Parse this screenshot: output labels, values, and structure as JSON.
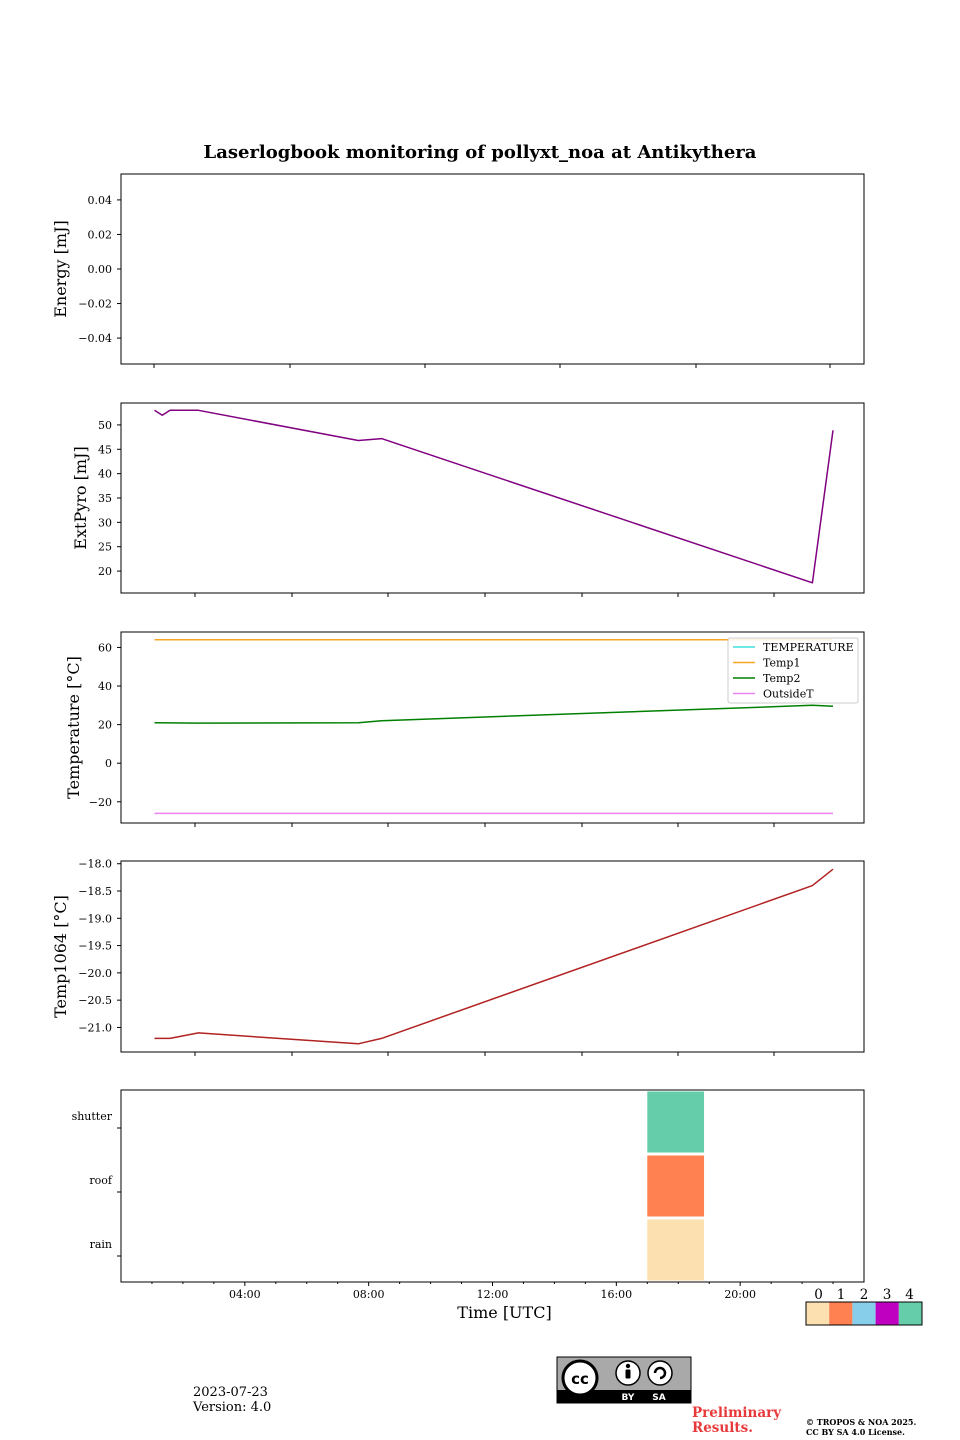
{
  "chart_data": {
    "type": "line",
    "title": "Laserlogbook monitoring of pollyxt_noa at Antikythera",
    "x_axis": {
      "label": "Time [UTC]",
      "range": [
        "00:00",
        "24:00"
      ],
      "tick_labels": [
        "04:00",
        "08:00",
        "12:00",
        "16:00",
        "20:00"
      ]
    },
    "panels": [
      {
        "name": "energy",
        "ylabel": "Energy [mJ]",
        "ylim": [
          -0.055,
          0.055
        ],
        "yticks": [
          0.04,
          0.02,
          0.0,
          -0.02,
          -0.04
        ],
        "ytick_labels": [
          "0.04",
          "0.02",
          "0.00",
          "−0.02",
          "−0.04"
        ],
        "series": []
      },
      {
        "name": "extpyro",
        "ylabel": "ExtPyro [mJ]",
        "ylim": [
          15.5,
          54.5
        ],
        "yticks": [
          50,
          45,
          40,
          35,
          30,
          25,
          20
        ],
        "ytick_labels": [
          "50",
          "45",
          "40",
          "35",
          "30",
          "25",
          "20"
        ],
        "series": [
          {
            "color": "#800080",
            "x": [
              "01:05",
              "01:20",
              "01:35",
              "02:30",
              "07:40",
              "08:25",
              "22:20",
              "23:00"
            ],
            "y": [
              53.0,
              52.0,
              53.0,
              53.0,
              46.8,
              47.2,
              17.6,
              48.9
            ]
          }
        ]
      },
      {
        "name": "temperature",
        "ylabel": "Temperature [°C]",
        "ylim": [
          -31,
          68
        ],
        "yticks": [
          60,
          40,
          20,
          0,
          -20
        ],
        "ytick_labels": [
          "60",
          "40",
          "20",
          "0",
          "−20"
        ],
        "legend": {
          "position": "top-right"
        },
        "series": [
          {
            "name": "TEMPERATURE",
            "color": "#40e0e0",
            "x": [],
            "y": []
          },
          {
            "name": "Temp1",
            "color": "#f5a623",
            "x": [
              "01:05",
              "23:00"
            ],
            "y": [
              64,
              64
            ]
          },
          {
            "name": "Temp2",
            "color": "#008000",
            "x": [
              "01:05",
              "02:30",
              "07:40",
              "08:25",
              "22:20",
              "23:00"
            ],
            "y": [
              21.0,
              20.8,
              21.0,
              22.0,
              30.0,
              29.5
            ]
          },
          {
            "name": "OutsideT",
            "color": "#ee82ee",
            "x": [
              "01:05",
              "23:00"
            ],
            "y": [
              -26,
              -26
            ]
          }
        ]
      },
      {
        "name": "temp1064",
        "ylabel": "Temp1064 [°C]",
        "ylim": [
          -21.45,
          -17.95
        ],
        "yticks": [
          -18.0,
          -18.5,
          -19.0,
          -19.5,
          -20.0,
          -20.5,
          -21.0
        ],
        "ytick_labels": [
          "−18.0",
          "−18.5",
          "−19.0",
          "−19.5",
          "−20.0",
          "−20.5",
          "−21.0"
        ],
        "series": [
          {
            "color": "#b22222",
            "x": [
              "01:05",
              "01:35",
              "02:30",
              "07:40",
              "08:25",
              "22:20",
              "23:00"
            ],
            "y": [
              -21.2,
              -21.2,
              -21.1,
              -21.3,
              -21.2,
              -18.4,
              -18.1
            ]
          }
        ]
      },
      {
        "name": "status",
        "type": "heatmap",
        "rows": [
          "rain",
          "roof",
          "shutter"
        ],
        "blocks": [
          {
            "row": "rain",
            "start": "17:00",
            "end": "18:50",
            "value": 0
          },
          {
            "row": "roof",
            "start": "17:00",
            "end": "18:50",
            "value": 1
          },
          {
            "row": "shutter",
            "start": "17:00",
            "end": "18:50",
            "value": 4
          }
        ]
      }
    ],
    "colorbar": {
      "labels": [
        "0",
        "1",
        "2",
        "3",
        "4"
      ],
      "colors": [
        "#fde0b0",
        "#ff8050",
        "#87ceeb",
        "#c000c0",
        "#66cdaa"
      ]
    }
  },
  "footer": {
    "date": "2023-07-23",
    "version": "Version: 4.0",
    "preliminary_line1": "Preliminary",
    "preliminary_line2": "Results.",
    "copyright_line1": "© TROPOS & NOA 2025.",
    "copyright_line2": "CC BY SA 4.0 License.",
    "license_badge": {
      "by": "BY",
      "sa": "SA"
    }
  }
}
